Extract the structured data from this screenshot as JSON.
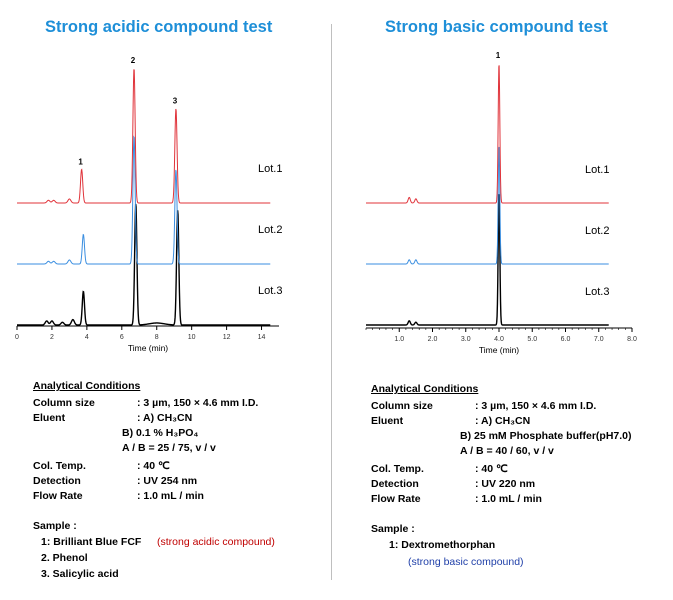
{
  "panels": [
    {
      "title": "Strong acidic compound test",
      "xlabel": "Time (min)",
      "lots": [
        "Lot.1",
        "Lot.2",
        "Lot.3"
      ],
      "peaks": [
        "1",
        "2",
        "3"
      ],
      "conditions": {
        "header": "Analytical Conditions",
        "column_size_label": "Column size",
        "column_size_value": ": 3 µm, 150 × 4.6 mm I.D.",
        "eluent_label": "Eluent",
        "eluent_a": ": A) CH₃CN",
        "eluent_b": "B) 0.1 % H₃PO₄",
        "eluent_ratio": "A / B = 25 / 75, v / v",
        "col_temp_label": "Col. Temp.",
        "col_temp_value": ": 40 ℃",
        "detection_label": "Detection",
        "detection_value": ": UV 254 nm",
        "flow_label": "Flow Rate",
        "flow_value": ": 1.0 mL / min",
        "sample_label": "Sample :",
        "samples": [
          "1: Brilliant  Blue  FCF",
          "2. Phenol",
          "3. Salicylic  acid"
        ],
        "sample_note": "(strong acidic compound)"
      }
    },
    {
      "title": "Strong basic compound test",
      "xlabel": "Time (min)",
      "lots": [
        "Lot.1",
        "Lot.2",
        "Lot.3"
      ],
      "peaks": [
        "1"
      ],
      "conditions": {
        "header": "Analytical Conditions",
        "column_size_label": "Column size",
        "column_size_value": ": 3 µm,  150 × 4.6 mm I.D.",
        "eluent_label": "Eluent",
        "eluent_a": ": A) CH₃CN",
        "eluent_b": "B) 25 mM Phosphate buffer(pH7.0)",
        "eluent_ratio": "A / B = 40 / 60, v / v",
        "col_temp_label": "Col. Temp.",
        "col_temp_value": ": 40 ℃",
        "detection_label": "Detection",
        "detection_value": ": UV 220 nm",
        "flow_label": "Flow Rate",
        "flow_value": ": 1.0 mL / min",
        "sample_label": "Sample :",
        "samples": [
          "1: Dextromethorphan"
        ],
        "sample_note": "(strong basic compound)"
      }
    }
  ],
  "colors": {
    "lot1": "#e0333a",
    "lot2": "#3a8ee0",
    "lot3": "#000000",
    "title": "#1e8fd8"
  },
  "chart_data": [
    {
      "type": "line",
      "title": "Strong acidic compound test",
      "xlabel": "Time (min)",
      "x_ticks": [
        "0",
        "2",
        "4",
        "6",
        "8",
        "10",
        "12",
        "14"
      ],
      "xlim": [
        0,
        15
      ],
      "series": [
        {
          "name": "Lot.1",
          "color": "#e0333a",
          "peaks": [
            {
              "label": "1",
              "time": 3.7,
              "height": 0.25
            },
            {
              "label": "2",
              "time": 6.7,
              "height": 1.0
            },
            {
              "label": "3",
              "time": 9.1,
              "height": 0.7
            }
          ],
          "minor_peaks": [
            {
              "time": 1.8,
              "height": 0.02
            },
            {
              "time": 2.1,
              "height": 0.02
            },
            {
              "time": 3.0,
              "height": 0.03
            }
          ]
        },
        {
          "name": "Lot.2",
          "color": "#3a8ee0",
          "peaks": [
            {
              "label": "1",
              "time": 3.8,
              "height": 0.22
            },
            {
              "label": "2",
              "time": 6.7,
              "height": 0.95
            },
            {
              "label": "3",
              "time": 9.1,
              "height": 0.7
            }
          ],
          "minor_peaks": [
            {
              "time": 1.8,
              "height": 0.02
            },
            {
              "time": 2.1,
              "height": 0.02
            },
            {
              "time": 3.0,
              "height": 0.03
            }
          ]
        },
        {
          "name": "Lot.3",
          "color": "#000000",
          "peaks": [
            {
              "label": "1",
              "time": 3.8,
              "height": 0.25
            },
            {
              "label": "2",
              "time": 6.8,
              "height": 0.9
            },
            {
              "label": "3",
              "time": 9.2,
              "height": 0.85
            }
          ],
          "minor_peaks": [
            {
              "time": 1.7,
              "height": 0.03
            },
            {
              "time": 2.0,
              "height": 0.03
            },
            {
              "time": 2.6,
              "height": 0.02
            },
            {
              "time": 3.2,
              "height": 0.04
            }
          ]
        }
      ]
    },
    {
      "type": "line",
      "title": "Strong basic compound test",
      "xlabel": "Time (min)",
      "x_ticks": [
        "1.0",
        "2.0",
        "3.0",
        "4.0",
        "5.0",
        "6.0",
        "7.0",
        "8.0"
      ],
      "xlim": [
        0,
        8
      ],
      "series": [
        {
          "name": "Lot.1",
          "color": "#e0333a",
          "peaks": [
            {
              "label": "1",
              "time": 4.0,
              "height": 1.0
            }
          ],
          "minor_peaks": [
            {
              "time": 1.3,
              "height": 0.04
            },
            {
              "time": 1.5,
              "height": 0.03
            }
          ]
        },
        {
          "name": "Lot.2",
          "color": "#3a8ee0",
          "peaks": [
            {
              "label": "1",
              "time": 4.0,
              "height": 0.85
            }
          ],
          "minor_peaks": [
            {
              "time": 1.3,
              "height": 0.03
            },
            {
              "time": 1.5,
              "height": 0.03
            }
          ]
        },
        {
          "name": "Lot.3",
          "color": "#000000",
          "peaks": [
            {
              "label": "1",
              "time": 4.0,
              "height": 0.95
            }
          ],
          "minor_peaks": [
            {
              "time": 1.3,
              "height": 0.03
            },
            {
              "time": 1.5,
              "height": 0.02
            }
          ]
        }
      ]
    }
  ]
}
